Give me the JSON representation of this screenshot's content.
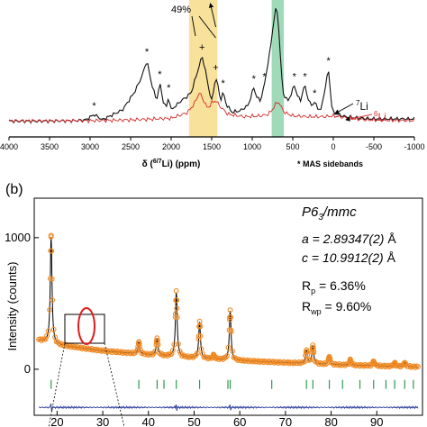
{
  "chart_data": [
    {
      "panel": "",
      "type": "line",
      "title": "",
      "xlabel": "δ (6/7Li) (ppm)",
      "xlabel_parts": {
        "pre": "δ (",
        "sup": "6/7",
        "post": "Li) (ppm)"
      },
      "ylabel": "",
      "xlim": [
        4000,
        -1000
      ],
      "x_reversed": true,
      "x_ticks": [
        4000,
        3500,
        3000,
        2500,
        2000,
        1500,
        1000,
        500,
        0,
        -500,
        -1000
      ],
      "x_tick_labels": [
        "4000",
        "3500",
        "3000",
        "2500",
        "2000",
        "1500",
        "1000",
        "500",
        "0",
        "-500",
        "-1000"
      ],
      "highlight_bands": [
        {
          "from": 1780,
          "to": 1430,
          "color": "#f7dc8a"
        },
        {
          "from": 760,
          "to": 610,
          "color": "#8fd4ad"
        }
      ],
      "series": [
        {
          "name": "7Li",
          "label_parts": {
            "sup": "7",
            "base": "Li"
          },
          "color": "#111111",
          "x": [
            4000,
            3600,
            3200,
            3050,
            2950,
            2850,
            2600,
            2450,
            2360,
            2300,
            2250,
            2180,
            2140,
            2100,
            2060,
            2030,
            2000,
            1950,
            1880,
            1800,
            1750,
            1700,
            1650,
            1620,
            1580,
            1540,
            1500,
            1470,
            1450,
            1420,
            1390,
            1360,
            1320,
            1250,
            1150,
            1050,
            980,
            950,
            900,
            850,
            820,
            790,
            760,
            740,
            720,
            700,
            680,
            660,
            640,
            620,
            600,
            560,
            520,
            480,
            440,
            400,
            380,
            350,
            320,
            290,
            260,
            230,
            200,
            150,
            100,
            60,
            40,
            20,
            0,
            -50,
            -150,
            -300,
            -500,
            -700,
            -1000
          ],
          "y": [
            15,
            15,
            16,
            18,
            30,
            18,
            40,
            80,
            115,
            150,
            105,
            60,
            100,
            60,
            45,
            70,
            40,
            48,
            60,
            70,
            80,
            110,
            140,
            160,
            130,
            90,
            60,
            90,
            115,
            90,
            60,
            80,
            52,
            35,
            38,
            50,
            90,
            70,
            60,
            95,
            130,
            160,
            200,
            230,
            255,
            270,
            240,
            180,
            120,
            80,
            70,
            60,
            75,
            95,
            70,
            60,
            80,
            95,
            70,
            55,
            50,
            58,
            45,
            40,
            90,
            130,
            90,
            50,
            35,
            30,
            25,
            22,
            20,
            20,
            20
          ]
        },
        {
          "name": "6Li",
          "label_parts": {
            "sup": "6",
            "base": "Li"
          },
          "color": "#d42a2a",
          "x": [
            4000,
            3000,
            2500,
            2000,
            1800,
            1720,
            1650,
            1600,
            1550,
            1500,
            1450,
            1400,
            1300,
            1100,
            900,
            800,
            750,
            700,
            680,
            650,
            600,
            500,
            300,
            100,
            0,
            -200,
            -400,
            -1000
          ],
          "y": [
            0,
            0,
            1,
            3,
            10,
            20,
            35,
            25,
            15,
            22,
            25,
            18,
            8,
            5,
            6,
            8,
            14,
            22,
            24,
            18,
            10,
            6,
            5,
            5,
            6,
            3,
            1,
            0
          ]
        }
      ],
      "annotations": [
        {
          "text": "49%",
          "at": 1700
        },
        {
          "text": "+",
          "at": 1620
        },
        {
          "text": "+",
          "at": 1450
        },
        {
          "text": "*",
          "at": 2950
        },
        {
          "text": "*",
          "at": 2300
        },
        {
          "text": "*",
          "at": 2140
        },
        {
          "text": "*",
          "at": 2030
        },
        {
          "text": "*",
          "at": 1360
        },
        {
          "text": "*",
          "at": 980
        },
        {
          "text": "*",
          "at": 850
        },
        {
          "text": "*",
          "at": 480
        },
        {
          "text": "*",
          "at": 350
        },
        {
          "text": "*",
          "at": 230
        },
        {
          "text": "*",
          "at": 60
        }
      ],
      "footnote": "* MAS sidebands"
    },
    {
      "panel": "(b)",
      "type": "scatter",
      "title": "",
      "xlabel": "",
      "ylabel": "Intensity (counts)",
      "xlim": [
        15,
        100
      ],
      "ylim": [
        -350,
        1300
      ],
      "x_ticks": [
        20,
        30,
        40,
        50,
        60,
        70,
        80,
        90
      ],
      "x_tick_labels": [
        "20",
        "30",
        "40",
        "50",
        "60",
        "70",
        "80",
        "90"
      ],
      "y_ticks": [
        0,
        1000
      ],
      "y_tick_labels": [
        "0",
        "1000"
      ],
      "phase": {
        "pre": "P6",
        "sub": "3",
        "post": "/mmc"
      },
      "params": [
        {
          "pre": "a = 2.89347(2) ",
          "unit": "Å"
        },
        {
          "pre": "c = 10.9912(2) ",
          "unit": "Å"
        },
        {
          "sym": "R",
          "sub": "p",
          "post": " = 6.36%"
        },
        {
          "sym": "R",
          "sub": "wp",
          "post": " = 9.60%"
        }
      ],
      "background": {
        "x": [
          15,
          20,
          30,
          40,
          50,
          60,
          70,
          80,
          90,
          100
        ],
        "y": [
          230,
          185,
          140,
          110,
          85,
          65,
          50,
          35,
          25,
          18
        ]
      },
      "peaks": [
        {
          "x": 18.7,
          "h": 820
        },
        {
          "x": 37.9,
          "h": 90
        },
        {
          "x": 41.9,
          "h": 130
        },
        {
          "x": 46.1,
          "h": 500
        },
        {
          "x": 51.2,
          "h": 280
        },
        {
          "x": 54.3,
          "h": 30
        },
        {
          "x": 57.9,
          "h": 380
        },
        {
          "x": 74.6,
          "h": 100
        },
        {
          "x": 76.0,
          "h": 140
        },
        {
          "x": 79.6,
          "h": 60
        },
        {
          "x": 84.2,
          "h": 40
        },
        {
          "x": 89.3,
          "h": 35
        },
        {
          "x": 93.9,
          "h": 25
        },
        {
          "x": 96.1,
          "h": 30
        }
      ],
      "bragg_positions": [
        18.7,
        37.9,
        41.9,
        43.4,
        46.1,
        51.2,
        57.4,
        57.9,
        67.0,
        74.6,
        76.0,
        79.6,
        82.5,
        86.3,
        89.3,
        92.0,
        93.9,
        96.1,
        98.0
      ],
      "difference_offset": -290
    }
  ]
}
